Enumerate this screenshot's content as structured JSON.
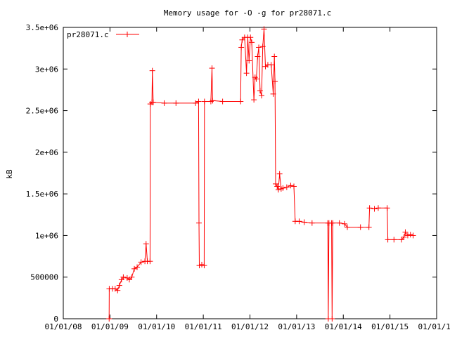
{
  "chart_data": {
    "type": "line",
    "title": "Memory usage for -O -g for pr28071.c",
    "xlabel": "",
    "ylabel": "kB",
    "legend_position": "top-left",
    "grid": false,
    "color": "#ff0000",
    "xlim": [
      "2008-01-01",
      "2016-01-01"
    ],
    "ylim": [
      0,
      3500000
    ],
    "x_ticks": [
      "01/01/08",
      "01/01/09",
      "01/01/10",
      "01/01/11",
      "01/01/12",
      "01/01/13",
      "01/01/14",
      "01/01/15",
      "01/01/16"
    ],
    "y_ticks": [
      {
        "value": 0,
        "label": "0"
      },
      {
        "value": 500000,
        "label": "500000"
      },
      {
        "value": 1000000,
        "label": "1e+06"
      },
      {
        "value": 1500000,
        "label": "1.5e+06"
      },
      {
        "value": 2000000,
        "label": "2e+06"
      },
      {
        "value": 2500000,
        "label": "2.5e+06"
      },
      {
        "value": 3000000,
        "label": "3e+06"
      },
      {
        "value": 3500000,
        "label": "3.5e+06"
      }
    ],
    "series": [
      {
        "name": "pr28071.c",
        "points": [
          [
            "2008-12-25",
            0
          ],
          [
            "2008-12-26",
            360000
          ],
          [
            "2009-01-20",
            360000
          ],
          [
            "2009-02-10",
            360000
          ],
          [
            "2009-03-01",
            340000
          ],
          [
            "2009-03-15",
            400000
          ],
          [
            "2009-04-01",
            470000
          ],
          [
            "2009-04-15",
            500000
          ],
          [
            "2009-05-15",
            490000
          ],
          [
            "2009-06-01",
            470000
          ],
          [
            "2009-06-20",
            500000
          ],
          [
            "2009-07-10",
            600000
          ],
          [
            "2009-08-01",
            620000
          ],
          [
            "2009-09-01",
            680000
          ],
          [
            "2009-10-01",
            690000
          ],
          [
            "2009-10-10",
            900000
          ],
          [
            "2009-10-20",
            690000
          ],
          [
            "2009-11-10",
            690000
          ],
          [
            "2009-11-12",
            2580000
          ],
          [
            "2009-11-25",
            2600000
          ],
          [
            "2009-11-28",
            2980000
          ],
          [
            "2009-12-05",
            2600000
          ],
          [
            "2010-03-01",
            2590000
          ],
          [
            "2010-06-01",
            2590000
          ],
          [
            "2010-11-01",
            2590000
          ],
          [
            "2010-11-25",
            2610000
          ],
          [
            "2010-11-28",
            1150000
          ],
          [
            "2010-12-01",
            640000
          ],
          [
            "2010-12-20",
            650000
          ],
          [
            "2011-01-08",
            640000
          ],
          [
            "2011-01-10",
            2610000
          ],
          [
            "2011-03-01",
            2610000
          ],
          [
            "2011-03-10",
            3010000
          ],
          [
            "2011-03-15",
            2620000
          ],
          [
            "2011-06-01",
            2610000
          ],
          [
            "2011-10-20",
            2610000
          ],
          [
            "2011-10-25",
            3260000
          ],
          [
            "2011-11-01",
            3350000
          ],
          [
            "2011-11-20",
            3380000
          ],
          [
            "2011-12-05",
            2950000
          ],
          [
            "2011-12-15",
            3380000
          ],
          [
            "2011-12-25",
            3100000
          ],
          [
            "2012-01-05",
            3380000
          ],
          [
            "2012-01-15",
            3320000
          ],
          [
            "2012-02-01",
            2630000
          ],
          [
            "2012-02-10",
            2900000
          ],
          [
            "2012-02-20",
            2880000
          ],
          [
            "2012-03-01",
            3150000
          ],
          [
            "2012-03-10",
            3260000
          ],
          [
            "2012-03-20",
            2740000
          ],
          [
            "2012-04-01",
            2680000
          ],
          [
            "2012-04-10",
            3270000
          ],
          [
            "2012-04-20",
            3480000
          ],
          [
            "2012-05-01",
            3030000
          ],
          [
            "2012-05-20",
            3050000
          ],
          [
            "2012-06-15",
            3050000
          ],
          [
            "2012-07-01",
            2700000
          ],
          [
            "2012-07-10",
            3150000
          ],
          [
            "2012-07-15",
            2850000
          ],
          [
            "2012-07-20",
            1620000
          ],
          [
            "2012-08-01",
            1590000
          ],
          [
            "2012-08-10",
            1550000
          ],
          [
            "2012-08-20",
            1740000
          ],
          [
            "2012-09-01",
            1560000
          ],
          [
            "2012-09-15",
            1570000
          ],
          [
            "2012-10-15",
            1580000
          ],
          [
            "2012-11-15",
            1600000
          ],
          [
            "2012-12-10",
            1590000
          ],
          [
            "2012-12-20",
            1170000
          ],
          [
            "2013-01-20",
            1170000
          ],
          [
            "2013-03-01",
            1160000
          ],
          [
            "2013-05-01",
            1150000
          ],
          [
            "2013-09-01",
            1150000
          ],
          [
            "2013-09-05",
            0
          ],
          [
            "2013-09-10",
            1150000
          ],
          [
            "2013-10-01",
            1150000
          ],
          [
            "2013-10-05",
            0
          ],
          [
            "2013-10-10",
            1150000
          ],
          [
            "2013-12-01",
            1150000
          ],
          [
            "2014-01-10",
            1140000
          ],
          [
            "2014-02-01",
            1100000
          ],
          [
            "2014-05-15",
            1100000
          ],
          [
            "2014-07-20",
            1100000
          ],
          [
            "2014-07-25",
            1330000
          ],
          [
            "2014-09-01",
            1320000
          ],
          [
            "2014-10-01",
            1330000
          ],
          [
            "2014-12-10",
            1330000
          ],
          [
            "2014-12-15",
            950000
          ],
          [
            "2015-02-01",
            950000
          ],
          [
            "2015-04-01",
            950000
          ],
          [
            "2015-04-20",
            980000
          ],
          [
            "2015-05-01",
            1040000
          ],
          [
            "2015-05-20",
            1000000
          ],
          [
            "2015-06-10",
            1010000
          ],
          [
            "2015-07-01",
            1000000
          ]
        ]
      }
    ]
  }
}
